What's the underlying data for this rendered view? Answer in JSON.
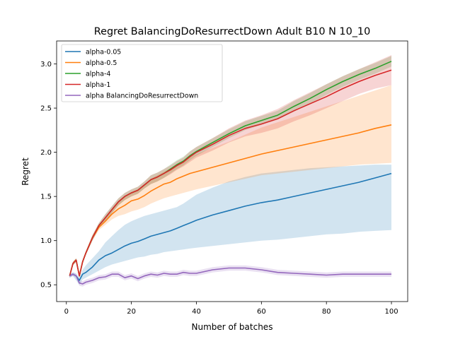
{
  "chart_data": {
    "type": "line",
    "title": "Regret BalancingDoResurrectDown Adult B10 N 10_10",
    "xlabel": "Number of batches",
    "ylabel": "Regret",
    "xlim": [
      -3,
      105
    ],
    "ylim": [
      0.31,
      3.26
    ],
    "xticks": [
      0,
      20,
      40,
      60,
      80,
      100
    ],
    "xtick_labels": [
      "0",
      "20",
      "40",
      "60",
      "80",
      "100"
    ],
    "yticks": [
      0.5,
      1.0,
      1.5,
      2.0,
      2.5,
      3.0
    ],
    "ytick_labels": [
      "0.5",
      "1.0",
      "1.5",
      "2.0",
      "2.5",
      "3.0"
    ],
    "grid": false,
    "legend_position": "upper-left",
    "series": [
      {
        "name": "alpha-0.05",
        "color": "#1f77b4",
        "x": [
          1,
          2,
          3,
          4,
          5,
          6,
          8,
          10,
          12,
          14,
          16,
          18,
          20,
          22,
          24,
          26,
          28,
          30,
          32,
          34,
          36,
          38,
          40,
          45,
          50,
          55,
          60,
          65,
          70,
          75,
          80,
          85,
          90,
          95,
          100
        ],
        "y": [
          0.6,
          0.62,
          0.6,
          0.55,
          0.62,
          0.64,
          0.7,
          0.78,
          0.83,
          0.86,
          0.9,
          0.94,
          0.97,
          0.99,
          1.02,
          1.05,
          1.07,
          1.09,
          1.11,
          1.14,
          1.17,
          1.2,
          1.23,
          1.29,
          1.34,
          1.39,
          1.43,
          1.46,
          1.5,
          1.54,
          1.58,
          1.62,
          1.66,
          1.71,
          1.76
        ],
        "lower": [
          0.58,
          0.6,
          0.55,
          0.5,
          0.56,
          0.58,
          0.62,
          0.66,
          0.7,
          0.73,
          0.75,
          0.77,
          0.79,
          0.81,
          0.82,
          0.84,
          0.85,
          0.87,
          0.88,
          0.89,
          0.9,
          0.91,
          0.92,
          0.94,
          0.96,
          0.98,
          1.0,
          1.01,
          1.03,
          1.05,
          1.07,
          1.08,
          1.1,
          1.11,
          1.12
        ],
        "upper": [
          0.62,
          0.64,
          0.63,
          0.58,
          0.67,
          0.72,
          0.8,
          0.88,
          0.98,
          1.05,
          1.12,
          1.18,
          1.22,
          1.25,
          1.28,
          1.3,
          1.32,
          1.34,
          1.36,
          1.38,
          1.42,
          1.47,
          1.52,
          1.6,
          1.67,
          1.72,
          1.76,
          1.78,
          1.8,
          1.82,
          1.83,
          1.84,
          1.85,
          1.86,
          1.86
        ]
      },
      {
        "name": "alpha-0.5",
        "color": "#ff7f0e",
        "x": [
          1,
          2,
          3,
          4,
          5,
          6,
          8,
          10,
          12,
          14,
          16,
          18,
          20,
          22,
          24,
          26,
          28,
          30,
          32,
          34,
          36,
          38,
          40,
          45,
          50,
          55,
          60,
          65,
          70,
          75,
          80,
          85,
          90,
          95,
          100
        ],
        "y": [
          0.6,
          0.74,
          0.78,
          0.6,
          0.76,
          0.86,
          1.03,
          1.15,
          1.22,
          1.3,
          1.36,
          1.4,
          1.45,
          1.47,
          1.51,
          1.56,
          1.6,
          1.64,
          1.66,
          1.7,
          1.73,
          1.76,
          1.78,
          1.83,
          1.88,
          1.93,
          1.98,
          2.02,
          2.06,
          2.1,
          2.14,
          2.18,
          2.22,
          2.27,
          2.31
        ],
        "lower": [
          0.58,
          0.72,
          0.76,
          0.58,
          0.74,
          0.84,
          1.0,
          1.12,
          1.18,
          1.24,
          1.28,
          1.3,
          1.33,
          1.35,
          1.38,
          1.42,
          1.45,
          1.48,
          1.5,
          1.52,
          1.54,
          1.56,
          1.58,
          1.62,
          1.66,
          1.7,
          1.74,
          1.76,
          1.78,
          1.8,
          1.82,
          1.84,
          1.86,
          1.87,
          1.88
        ],
        "upper": [
          0.62,
          0.76,
          0.8,
          0.62,
          0.78,
          0.88,
          1.06,
          1.18,
          1.26,
          1.35,
          1.43,
          1.49,
          1.55,
          1.58,
          1.63,
          1.7,
          1.74,
          1.78,
          1.82,
          1.86,
          1.9,
          1.95,
          1.98,
          2.05,
          2.12,
          2.2,
          2.28,
          2.34,
          2.4,
          2.46,
          2.52,
          2.58,
          2.64,
          2.7,
          2.76
        ]
      },
      {
        "name": "alpha-4",
        "color": "#2ca02c",
        "x": [
          1,
          2,
          3,
          4,
          5,
          6,
          8,
          10,
          12,
          14,
          16,
          18,
          20,
          22,
          24,
          26,
          28,
          30,
          32,
          34,
          36,
          38,
          40,
          45,
          50,
          55,
          60,
          65,
          70,
          75,
          80,
          85,
          90,
          95,
          100
        ],
        "y": [
          0.6,
          0.74,
          0.78,
          0.6,
          0.76,
          0.86,
          1.03,
          1.17,
          1.26,
          1.35,
          1.44,
          1.5,
          1.54,
          1.57,
          1.63,
          1.69,
          1.72,
          1.76,
          1.81,
          1.86,
          1.9,
          1.96,
          2.01,
          2.11,
          2.21,
          2.3,
          2.36,
          2.42,
          2.52,
          2.61,
          2.71,
          2.8,
          2.88,
          2.95,
          3.03
        ],
        "lower": [
          0.58,
          0.72,
          0.76,
          0.58,
          0.74,
          0.84,
          1.0,
          1.14,
          1.22,
          1.31,
          1.4,
          1.46,
          1.5,
          1.53,
          1.59,
          1.64,
          1.67,
          1.71,
          1.76,
          1.81,
          1.85,
          1.91,
          1.96,
          2.06,
          2.16,
          2.25,
          2.31,
          2.37,
          2.46,
          2.55,
          2.65,
          2.74,
          2.82,
          2.89,
          2.97
        ],
        "upper": [
          0.62,
          0.76,
          0.8,
          0.62,
          0.78,
          0.88,
          1.06,
          1.2,
          1.3,
          1.39,
          1.48,
          1.54,
          1.58,
          1.61,
          1.67,
          1.74,
          1.77,
          1.81,
          1.86,
          1.91,
          1.95,
          2.01,
          2.06,
          2.16,
          2.26,
          2.35,
          2.41,
          2.47,
          2.58,
          2.67,
          2.77,
          2.86,
          2.94,
          3.01,
          3.09
        ]
      },
      {
        "name": "alpha-1",
        "color": "#d62728",
        "x": [
          1,
          2,
          3,
          4,
          5,
          6,
          8,
          10,
          12,
          14,
          16,
          18,
          20,
          22,
          24,
          26,
          28,
          30,
          32,
          34,
          36,
          38,
          40,
          45,
          50,
          55,
          60,
          65,
          70,
          75,
          80,
          85,
          90,
          95,
          100
        ],
        "y": [
          0.6,
          0.74,
          0.78,
          0.6,
          0.76,
          0.86,
          1.03,
          1.17,
          1.26,
          1.35,
          1.44,
          1.5,
          1.54,
          1.57,
          1.63,
          1.69,
          1.72,
          1.76,
          1.8,
          1.85,
          1.89,
          1.95,
          2.0,
          2.09,
          2.19,
          2.27,
          2.32,
          2.38,
          2.47,
          2.55,
          2.63,
          2.72,
          2.8,
          2.87,
          2.93
        ],
        "lower": [
          0.58,
          0.72,
          0.76,
          0.58,
          0.74,
          0.84,
          1.0,
          1.14,
          1.22,
          1.31,
          1.4,
          1.46,
          1.5,
          1.53,
          1.59,
          1.64,
          1.67,
          1.71,
          1.75,
          1.8,
          1.84,
          1.89,
          1.94,
          2.02,
          2.11,
          2.18,
          2.22,
          2.27,
          2.35,
          2.42,
          2.5,
          2.58,
          2.66,
          2.72,
          2.76
        ],
        "upper": [
          0.62,
          0.76,
          0.8,
          0.62,
          0.78,
          0.88,
          1.06,
          1.2,
          1.3,
          1.39,
          1.48,
          1.54,
          1.58,
          1.61,
          1.67,
          1.74,
          1.77,
          1.81,
          1.85,
          1.9,
          1.94,
          2.01,
          2.06,
          2.16,
          2.27,
          2.36,
          2.42,
          2.49,
          2.59,
          2.68,
          2.77,
          2.86,
          2.94,
          3.02,
          3.1
        ]
      },
      {
        "name": "alpha BalancingDoResurrectDown",
        "color": "#9467bd",
        "x": [
          1,
          2,
          3,
          4,
          5,
          6,
          8,
          10,
          12,
          14,
          16,
          18,
          20,
          22,
          24,
          26,
          28,
          30,
          32,
          34,
          36,
          38,
          40,
          45,
          50,
          55,
          60,
          65,
          70,
          75,
          80,
          85,
          90,
          95,
          100
        ],
        "y": [
          0.6,
          0.62,
          0.6,
          0.52,
          0.51,
          0.53,
          0.55,
          0.58,
          0.59,
          0.62,
          0.62,
          0.58,
          0.6,
          0.57,
          0.6,
          0.62,
          0.61,
          0.63,
          0.62,
          0.62,
          0.64,
          0.63,
          0.63,
          0.67,
          0.69,
          0.69,
          0.67,
          0.64,
          0.63,
          0.62,
          0.61,
          0.62,
          0.62,
          0.62,
          0.62
        ],
        "lower": [
          0.58,
          0.6,
          0.58,
          0.49,
          0.48,
          0.5,
          0.52,
          0.55,
          0.56,
          0.59,
          0.59,
          0.55,
          0.57,
          0.54,
          0.57,
          0.59,
          0.58,
          0.6,
          0.59,
          0.59,
          0.61,
          0.6,
          0.6,
          0.64,
          0.66,
          0.66,
          0.64,
          0.61,
          0.6,
          0.59,
          0.58,
          0.59,
          0.59,
          0.59,
          0.59
        ],
        "upper": [
          0.62,
          0.64,
          0.62,
          0.55,
          0.54,
          0.56,
          0.58,
          0.61,
          0.62,
          0.65,
          0.65,
          0.61,
          0.63,
          0.6,
          0.63,
          0.65,
          0.64,
          0.66,
          0.65,
          0.65,
          0.67,
          0.66,
          0.66,
          0.7,
          0.72,
          0.72,
          0.7,
          0.67,
          0.66,
          0.65,
          0.64,
          0.65,
          0.65,
          0.65,
          0.65
        ]
      }
    ]
  }
}
